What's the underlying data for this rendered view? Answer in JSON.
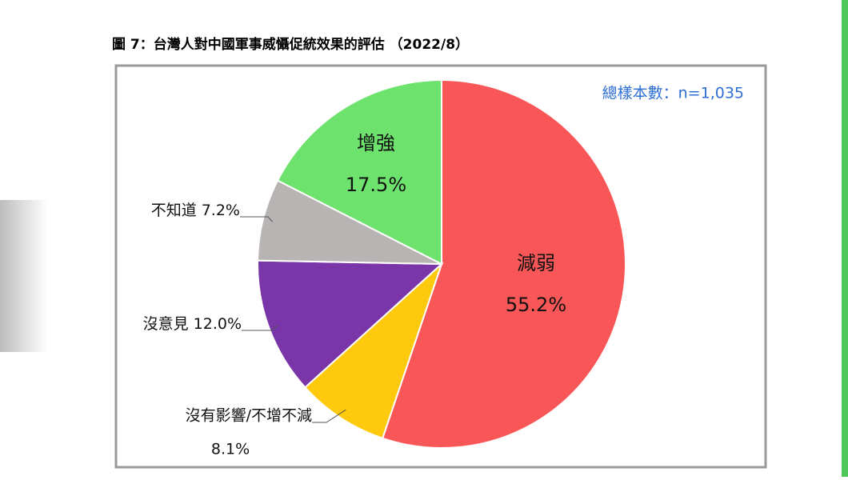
{
  "chart_data": {
    "type": "pie",
    "title": "圖 7：台灣人對中國軍事威懾促統效果的評估 （2022/8）",
    "annotation": "總樣本數：n=1,035",
    "categories": [
      "減弱",
      "沒有影響/不增不減",
      "沒意見",
      "不知道",
      "增強"
    ],
    "values": [
      55.2,
      8.1,
      12.0,
      7.2,
      17.5
    ],
    "value_labels": [
      "55.2%",
      "8.1%",
      "12.0%",
      "7.2%",
      "17.5%"
    ],
    "colors": [
      "#f95757",
      "#ffc90e",
      "#7a35a8",
      "#b8b4b4",
      "#6de26d"
    ]
  }
}
